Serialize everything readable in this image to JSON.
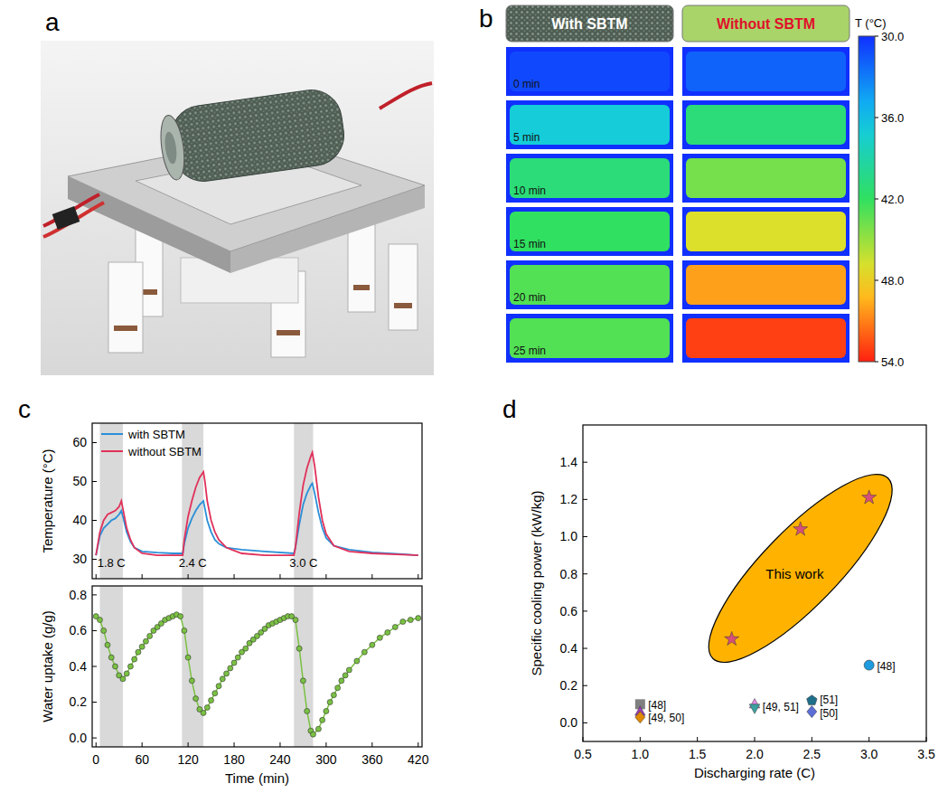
{
  "panels": [
    "a",
    "b",
    "c",
    "d"
  ],
  "chart_data": [
    {
      "type": "heatmap",
      "columns": [
        "With SBTM",
        "Without SBTM"
      ],
      "rows": [
        "0 min",
        "5 min",
        "10 min",
        "15 min",
        "20 min",
        "25 min"
      ],
      "cells": [
        [
          31,
          32
        ],
        [
          37,
          41
        ],
        [
          41,
          44
        ],
        [
          42,
          47
        ],
        [
          43,
          50
        ],
        [
          43,
          53
        ]
      ],
      "colorbar": {
        "label": "T (°C)",
        "range": [
          30,
          54
        ],
        "ticks": [
          {
            "value": 30,
            "label": "30.0"
          },
          {
            "value": 36,
            "label": "36.0"
          },
          {
            "value": 42,
            "label": "42.0"
          },
          {
            "value": 48,
            "label": "48.0"
          },
          {
            "value": 54,
            "label": "54.0"
          }
        ]
      }
    },
    {
      "type": "line",
      "y_label": "Temperature (°C)",
      "x": [
        0,
        5,
        10,
        15,
        20,
        25,
        30,
        33,
        35,
        40,
        45,
        50,
        60,
        80,
        100,
        113,
        115,
        120,
        125,
        130,
        135,
        140,
        142,
        145,
        150,
        155,
        160,
        170,
        190,
        220,
        258,
        260,
        265,
        270,
        275,
        280,
        282,
        285,
        290,
        295,
        300,
        310,
        330,
        360,
        400,
        420
      ],
      "series": [
        {
          "name": "with SBTM",
          "color": "#2a8fd8",
          "values": [
            31,
            36,
            38,
            39,
            40,
            40.5,
            41.5,
            42.5,
            41,
            37,
            34.5,
            33,
            32,
            31.7,
            31.5,
            31.5,
            34,
            38,
            40.5,
            42.5,
            44,
            45,
            43,
            40,
            37,
            35,
            34,
            33,
            32.5,
            32,
            31.5,
            33,
            39,
            44,
            47,
            49,
            49.5,
            47,
            42,
            38,
            35.5,
            33.5,
            32.5,
            31.8,
            31.3,
            31
          ]
        },
        {
          "name": "without SBTM",
          "color": "#e0315a",
          "values": [
            31,
            37,
            40,
            41.5,
            42,
            42.5,
            43.5,
            45,
            43,
            38,
            35,
            33,
            31.5,
            31,
            31,
            31,
            35,
            41,
            45,
            48.5,
            51,
            52.5,
            50,
            45,
            40,
            37,
            35,
            33,
            31.5,
            31,
            31,
            33,
            42,
            49,
            53.5,
            56.5,
            57.5,
            54,
            46,
            40,
            36.5,
            33.5,
            32,
            31.5,
            31.2,
            31
          ]
        }
      ],
      "xlim": [
        -5,
        425
      ],
      "xticks": [
        0,
        60,
        120,
        180,
        240,
        300,
        360,
        420
      ],
      "ylim": [
        25,
        65
      ],
      "yticks": [
        30,
        40,
        50,
        60
      ],
      "legend": "upper left",
      "tick_labels": "y",
      "shaded": [
        [
          5,
          35
        ],
        [
          112,
          140
        ],
        [
          258,
          283
        ]
      ],
      "annotations": [
        {
          "text": "1.8 C",
          "x": 20,
          "y": 28
        },
        {
          "text": "2.4 C",
          "x": 126,
          "y": 28
        },
        {
          "text": "3.0 C",
          "x": 270.5,
          "y": 28
        }
      ]
    },
    {
      "type": "line",
      "x_label": "Time (min)",
      "y_label": "Water uptake (g/g)",
      "x": [
        0,
        5,
        10,
        15,
        20,
        25,
        30,
        35,
        40,
        45,
        50,
        55,
        60,
        65,
        70,
        75,
        80,
        85,
        90,
        95,
        100,
        105,
        110,
        115,
        120,
        125,
        130,
        135,
        140,
        145,
        150,
        155,
        160,
        165,
        170,
        175,
        180,
        185,
        190,
        195,
        200,
        205,
        210,
        215,
        220,
        225,
        230,
        235,
        240,
        245,
        250,
        255,
        260,
        265,
        270,
        275,
        280,
        283,
        290,
        295,
        300,
        305,
        310,
        315,
        320,
        325,
        330,
        340,
        350,
        360,
        370,
        380,
        390,
        400,
        410,
        420
      ],
      "series": [
        {
          "color": "#7ac143",
          "marker": "circle",
          "values": [
            0.68,
            0.66,
            0.6,
            0.52,
            0.45,
            0.4,
            0.35,
            0.33,
            0.36,
            0.4,
            0.44,
            0.48,
            0.51,
            0.54,
            0.57,
            0.6,
            0.62,
            0.64,
            0.66,
            0.67,
            0.68,
            0.69,
            0.68,
            0.6,
            0.45,
            0.32,
            0.22,
            0.16,
            0.14,
            0.17,
            0.21,
            0.25,
            0.29,
            0.33,
            0.36,
            0.39,
            0.42,
            0.45,
            0.48,
            0.5,
            0.53,
            0.55,
            0.57,
            0.59,
            0.61,
            0.63,
            0.64,
            0.65,
            0.66,
            0.67,
            0.68,
            0.68,
            0.66,
            0.5,
            0.32,
            0.15,
            0.04,
            0.02,
            0.05,
            0.1,
            0.15,
            0.2,
            0.24,
            0.28,
            0.32,
            0.35,
            0.38,
            0.43,
            0.48,
            0.52,
            0.56,
            0.59,
            0.62,
            0.65,
            0.66,
            0.67
          ]
        }
      ],
      "xlim": [
        -5,
        425
      ],
      "xticks": [
        0,
        60,
        120,
        180,
        240,
        300,
        360,
        420
      ],
      "ylim": [
        -0.05,
        0.85
      ],
      "yticks": [
        {
          "value": 0,
          "label": "0.0"
        },
        0.2,
        0.4,
        0.6,
        0.8
      ],
      "shaded": [
        [
          5,
          35
        ],
        [
          112,
          140
        ],
        [
          258,
          283
        ]
      ]
    },
    {
      "type": "scatter",
      "x_label": "Discharging rate (C)",
      "y_label": "Specific cooling power (kW/kg)",
      "xlim": [
        0.5,
        3.5
      ],
      "xticks": [
        0.5,
        {
          "value": 1,
          "label": "1.0"
        },
        1.5,
        {
          "value": 2,
          "label": "2.0"
        },
        2.5,
        {
          "value": 3,
          "label": "3.0"
        },
        3.5
      ],
      "ylim": [
        -0.1,
        1.6
      ],
      "yticks": [
        {
          "value": 0,
          "label": "0.0"
        },
        0.2,
        0.4,
        0.6,
        0.8,
        {
          "value": 1,
          "label": "1.0"
        },
        1.2,
        1.4
      ],
      "series": [
        {
          "color": "#d6507a",
          "marker": "star",
          "x": [
            1.8,
            2.4,
            3.0
          ],
          "values": [
            0.45,
            1.04,
            1.21
          ]
        },
        {
          "color": "#808080",
          "marker": "square",
          "x": [
            1.0
          ],
          "values": [
            0.1
          ]
        },
        {
          "color": "#9b3fb5",
          "marker": "triangle",
          "x": [
            1.0
          ],
          "values": [
            0.06
          ]
        },
        {
          "color": "#e08a00",
          "marker": "diamond",
          "x": [
            1.0
          ],
          "values": [
            0.03
          ]
        },
        {
          "color": "#e58ae5",
          "marker": "triangle",
          "x": [
            2.0
          ],
          "values": [
            0.1
          ]
        },
        {
          "color": "#3aa0a0",
          "marker": "triangle-down",
          "x": [
            2.0
          ],
          "values": [
            0.08
          ]
        },
        {
          "color": "#1f6f8b",
          "marker": "pentagon",
          "x": [
            2.5
          ],
          "values": [
            0.12
          ]
        },
        {
          "color": "#5b6fd6",
          "marker": "diamond",
          "x": [
            2.5
          ],
          "values": [
            0.06
          ]
        },
        {
          "color": "#1f9be0",
          "marker": "circle",
          "x": [
            3.0
          ],
          "values": [
            0.31
          ]
        }
      ],
      "annotations": [
        {
          "text": "This work",
          "x": 2.35,
          "y": 0.8
        },
        {
          "text": "[48]",
          "x": 1.07,
          "y": 0.1
        },
        {
          "text": "[49, 50]",
          "x": 1.07,
          "y": 0.03
        },
        {
          "text": "[49, 51]",
          "x": 2.07,
          "y": 0.09
        },
        {
          "text": "[51]",
          "x": 2.57,
          "y": 0.13
        },
        {
          "text": "[50]",
          "x": 2.57,
          "y": 0.055
        },
        {
          "text": "[48]",
          "x": 3.07,
          "y": 0.31
        }
      ]
    }
  ]
}
